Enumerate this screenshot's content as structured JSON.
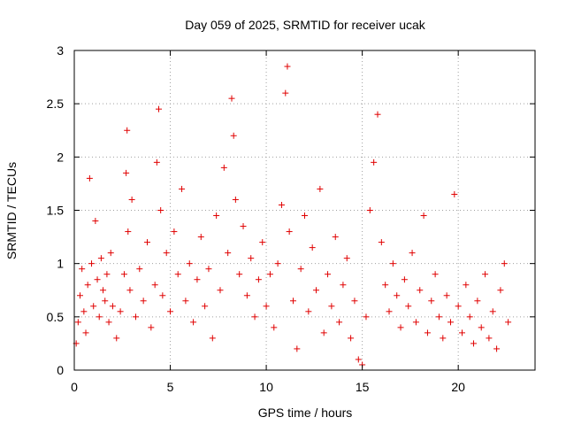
{
  "chart_data": {
    "type": "scatter",
    "title": "Day 059 of 2025, SRMTID for receiver ucak",
    "xlabel": "GPS time / hours",
    "ylabel": "SRMTID / TECUs",
    "xlim": [
      0,
      24
    ],
    "ylim": [
      0,
      3
    ],
    "xticks": [
      0,
      5,
      10,
      15,
      20
    ],
    "xtick_labels": [
      "0",
      "5",
      "10",
      "15",
      "20"
    ],
    "yticks": [
      0,
      0.5,
      1,
      1.5,
      2,
      2.5,
      3
    ],
    "ytick_labels": [
      "0",
      "0.5",
      "1",
      "1.5",
      "2",
      "2.5",
      "3"
    ],
    "grid": true,
    "legend": "none",
    "marker": "+",
    "series": [
      {
        "name": "SRMTID",
        "color": "#e00000",
        "points": [
          [
            0.1,
            0.25
          ],
          [
            0.2,
            0.45
          ],
          [
            0.3,
            0.7
          ],
          [
            0.4,
            0.95
          ],
          [
            0.5,
            0.55
          ],
          [
            0.6,
            0.35
          ],
          [
            0.7,
            0.8
          ],
          [
            0.8,
            1.8
          ],
          [
            0.9,
            1.0
          ],
          [
            1.0,
            0.6
          ],
          [
            1.1,
            1.4
          ],
          [
            1.2,
            0.85
          ],
          [
            1.3,
            0.5
          ],
          [
            1.4,
            1.05
          ],
          [
            1.5,
            0.75
          ],
          [
            1.6,
            0.65
          ],
          [
            1.7,
            0.9
          ],
          [
            1.8,
            0.45
          ],
          [
            1.9,
            1.1
          ],
          [
            2.0,
            0.6
          ],
          [
            2.2,
            0.3
          ],
          [
            2.4,
            0.55
          ],
          [
            2.6,
            0.9
          ],
          [
            2.7,
            1.85
          ],
          [
            2.75,
            2.25
          ],
          [
            2.8,
            1.3
          ],
          [
            2.9,
            0.75
          ],
          [
            3.0,
            1.6
          ],
          [
            3.2,
            0.5
          ],
          [
            3.4,
            0.95
          ],
          [
            3.6,
            0.65
          ],
          [
            3.8,
            1.2
          ],
          [
            4.0,
            0.4
          ],
          [
            4.2,
            0.8
          ],
          [
            4.3,
            1.95
          ],
          [
            4.4,
            2.45
          ],
          [
            4.5,
            1.5
          ],
          [
            4.6,
            0.7
          ],
          [
            4.8,
            1.1
          ],
          [
            5.0,
            0.55
          ],
          [
            5.2,
            1.3
          ],
          [
            5.4,
            0.9
          ],
          [
            5.6,
            1.7
          ],
          [
            5.8,
            0.65
          ],
          [
            6.0,
            1.0
          ],
          [
            6.2,
            0.45
          ],
          [
            6.4,
            0.85
          ],
          [
            6.6,
            1.25
          ],
          [
            6.8,
            0.6
          ],
          [
            7.0,
            0.95
          ],
          [
            7.2,
            0.3
          ],
          [
            7.4,
            1.45
          ],
          [
            7.6,
            0.75
          ],
          [
            7.8,
            1.9
          ],
          [
            8.0,
            1.1
          ],
          [
            8.2,
            2.55
          ],
          [
            8.3,
            2.2
          ],
          [
            8.4,
            1.6
          ],
          [
            8.6,
            0.9
          ],
          [
            8.8,
            1.35
          ],
          [
            9.0,
            0.7
          ],
          [
            9.2,
            1.05
          ],
          [
            9.4,
            0.5
          ],
          [
            9.6,
            0.85
          ],
          [
            9.8,
            1.2
          ],
          [
            10.0,
            0.6
          ],
          [
            10.2,
            0.9
          ],
          [
            10.4,
            0.4
          ],
          [
            10.6,
            1.0
          ],
          [
            10.8,
            1.55
          ],
          [
            11.0,
            2.6
          ],
          [
            11.1,
            2.85
          ],
          [
            11.2,
            1.3
          ],
          [
            11.4,
            0.65
          ],
          [
            11.6,
            0.2
          ],
          [
            11.8,
            0.95
          ],
          [
            12.0,
            1.45
          ],
          [
            12.2,
            0.55
          ],
          [
            12.4,
            1.15
          ],
          [
            12.6,
            0.75
          ],
          [
            12.8,
            1.7
          ],
          [
            13.0,
            0.35
          ],
          [
            13.2,
            0.9
          ],
          [
            13.4,
            0.6
          ],
          [
            13.6,
            1.25
          ],
          [
            13.8,
            0.45
          ],
          [
            14.0,
            0.8
          ],
          [
            14.2,
            1.05
          ],
          [
            14.4,
            0.3
          ],
          [
            14.6,
            0.65
          ],
          [
            14.8,
            0.1
          ],
          [
            15.0,
            0.05
          ],
          [
            15.2,
            0.5
          ],
          [
            15.4,
            1.5
          ],
          [
            15.6,
            1.95
          ],
          [
            15.8,
            2.4
          ],
          [
            16.0,
            1.2
          ],
          [
            16.2,
            0.8
          ],
          [
            16.4,
            0.55
          ],
          [
            16.6,
            1.0
          ],
          [
            16.8,
            0.7
          ],
          [
            17.0,
            0.4
          ],
          [
            17.2,
            0.85
          ],
          [
            17.4,
            0.6
          ],
          [
            17.6,
            1.1
          ],
          [
            17.8,
            0.45
          ],
          [
            18.0,
            0.75
          ],
          [
            18.2,
            1.45
          ],
          [
            18.4,
            0.35
          ],
          [
            18.6,
            0.65
          ],
          [
            18.8,
            0.9
          ],
          [
            19.0,
            0.5
          ],
          [
            19.2,
            0.3
          ],
          [
            19.4,
            0.7
          ],
          [
            19.6,
            0.45
          ],
          [
            19.8,
            1.65
          ],
          [
            20.0,
            0.6
          ],
          [
            20.2,
            0.35
          ],
          [
            20.4,
            0.8
          ],
          [
            20.6,
            0.5
          ],
          [
            20.8,
            0.25
          ],
          [
            21.0,
            0.65
          ],
          [
            21.2,
            0.4
          ],
          [
            21.4,
            0.9
          ],
          [
            21.6,
            0.3
          ],
          [
            21.8,
            0.55
          ],
          [
            22.0,
            0.2
          ],
          [
            22.2,
            0.75
          ],
          [
            22.4,
            1.0
          ],
          [
            22.6,
            0.45
          ]
        ]
      }
    ]
  }
}
